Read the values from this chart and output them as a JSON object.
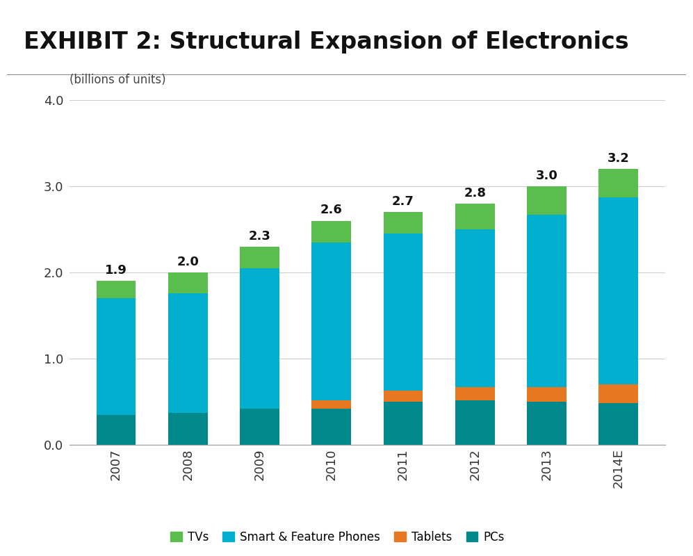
{
  "title": "EXHIBIT 2: Structural Expansion of Electronics",
  "subtitle": "(billions of units)",
  "years": [
    "2007",
    "2008",
    "2009",
    "2010",
    "2011",
    "2012",
    "2013",
    "2014E"
  ],
  "totals": [
    1.9,
    2.0,
    2.3,
    2.6,
    2.7,
    2.8,
    3.0,
    3.2
  ],
  "segments": {
    "PCs": [
      0.35,
      0.37,
      0.42,
      0.42,
      0.5,
      0.52,
      0.5,
      0.48
    ],
    "Tablets": [
      0.0,
      0.0,
      0.0,
      0.1,
      0.13,
      0.15,
      0.17,
      0.22
    ],
    "Smart & Feature Phones": [
      1.35,
      1.39,
      1.63,
      1.83,
      1.82,
      1.83,
      2.0,
      2.17
    ],
    "TVs": [
      0.2,
      0.24,
      0.25,
      0.25,
      0.25,
      0.3,
      0.33,
      0.33
    ]
  },
  "colors": {
    "PCs": "#00888A",
    "Tablets": "#E87722",
    "Smart & Feature Phones": "#00AECD",
    "TVs": "#5BBD4E"
  },
  "ylim": [
    0,
    4.0
  ],
  "yticks": [
    0.0,
    1.0,
    2.0,
    3.0,
    4.0
  ],
  "background_color": "#ffffff",
  "title_bg_color": "#d4d4d4",
  "title_fontsize": 24,
  "subtitle_fontsize": 12,
  "tick_fontsize": 13,
  "label_fontsize": 13,
  "legend_fontsize": 12,
  "legend_order": [
    "TVs",
    "Smart & Feature Phones",
    "Tablets",
    "PCs"
  ],
  "bar_width": 0.55
}
